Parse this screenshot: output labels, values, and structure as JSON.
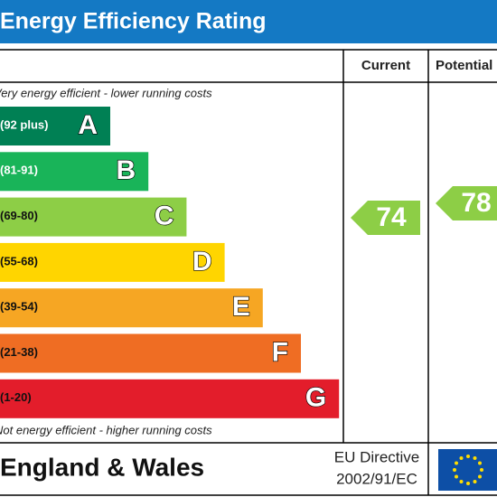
{
  "header": {
    "title": "Energy Efficiency Rating"
  },
  "columns": {
    "current": "Current",
    "potential": "Potential"
  },
  "top_note": "Very energy efficient - lower running costs",
  "bands": [
    {
      "range": "(92 plus)",
      "letter": "A"
    },
    {
      "range": "(81-91)",
      "letter": "B"
    },
    {
      "range": "(69-80)",
      "letter": "C"
    },
    {
      "range": "(55-68)",
      "letter": "D"
    },
    {
      "range": "(39-54)",
      "letter": "E"
    },
    {
      "range": "(21-38)",
      "letter": "F"
    },
    {
      "range": "(1-20)",
      "letter": "G"
    }
  ],
  "bottom_note": "Not energy efficient - higher running costs",
  "ratings": {
    "current": 74,
    "potential": 78
  },
  "footer": {
    "region": "England & Wales",
    "directive_line1": "EU Directive",
    "directive_line2": "2002/91/EC"
  }
}
